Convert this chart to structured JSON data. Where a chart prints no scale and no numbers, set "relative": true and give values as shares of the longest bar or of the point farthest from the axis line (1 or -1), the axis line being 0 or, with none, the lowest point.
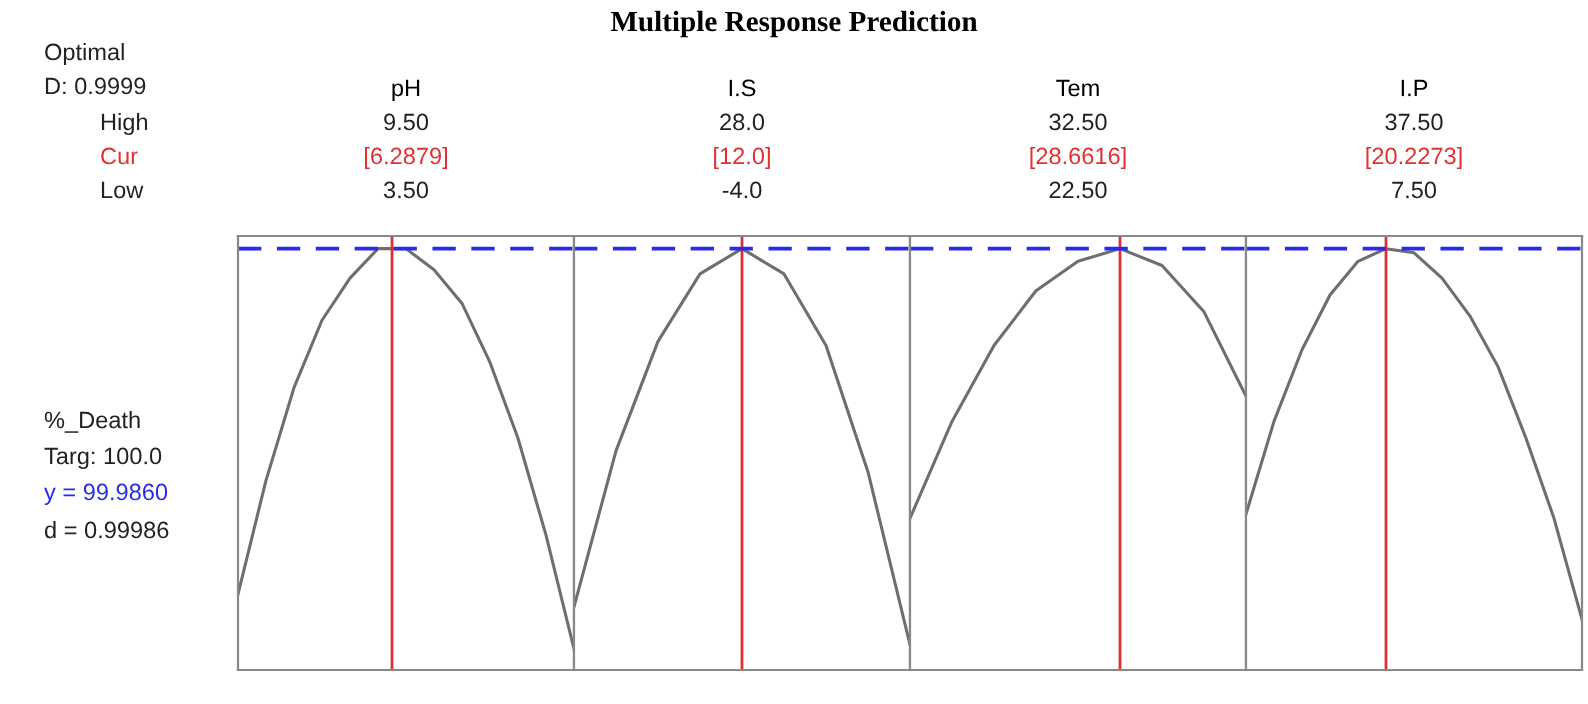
{
  "chart_data": [
    {
      "type": "line",
      "title": "pH",
      "relative": true,
      "annotations": [
        "9.50",
        "[6.2879]",
        "3.50"
      ],
      "categories": [
        null,
        null,
        null,
        null,
        null,
        null,
        null,
        null,
        null,
        null,
        null,
        null,
        null
      ],
      "series": [
        {
          "color": "#6e6e6e",
          "values": [
            0.18,
            0.45,
            0.67,
            0.83,
            0.93,
            1,
            1,
            0.95,
            0.87,
            0.73,
            0.55,
            0.32,
            0.05
          ]
        }
      ]
    },
    {
      "type": "line",
      "title": "I.S",
      "relative": true,
      "annotations": [
        "28.0",
        "[12.0]",
        "-4.0"
      ],
      "categories": [
        null,
        null,
        null,
        null,
        null,
        null,
        null,
        null,
        null
      ],
      "series": [
        {
          "color": "#6e6e6e",
          "values": [
            0.15,
            0.52,
            0.78,
            0.94,
            1,
            0.94,
            0.77,
            0.47,
            0.06
          ]
        }
      ]
    },
    {
      "type": "line",
      "title": "Tem",
      "relative": true,
      "annotations": [
        "32.50",
        "[28.6616]",
        "22.50"
      ],
      "categories": [
        null,
        null,
        null,
        null,
        null,
        null,
        null,
        null,
        null
      ],
      "series": [
        {
          "color": "#6e6e6e",
          "values": [
            0.36,
            0.59,
            0.77,
            0.9,
            0.97,
            1,
            0.96,
            0.85,
            0.65
          ]
        }
      ]
    },
    {
      "type": "line",
      "title": "I.P",
      "relative": true,
      "annotations": [
        "37.50",
        "[20.2273]",
        "7.50"
      ],
      "categories": [
        null,
        null,
        null,
        null,
        null,
        null,
        null,
        null,
        null,
        null,
        null,
        null,
        null
      ],
      "series": [
        {
          "color": "#6e6e6e",
          "values": [
            0.37,
            0.59,
            0.76,
            0.89,
            0.97,
            1,
            0.99,
            0.93,
            0.84,
            0.72,
            0.55,
            0.36,
            0.12
          ]
        }
      ]
    },
    {
      "type": "other",
      "title": "Multiple Response Prediction",
      "annotations": [
        "Optimal",
        "D: 0.9999",
        "High",
        "Cur",
        "Low",
        "%_Death",
        "Targ: 100.0",
        "y = 99.9860",
        "d = 0.99986"
      ]
    }
  ]
}
